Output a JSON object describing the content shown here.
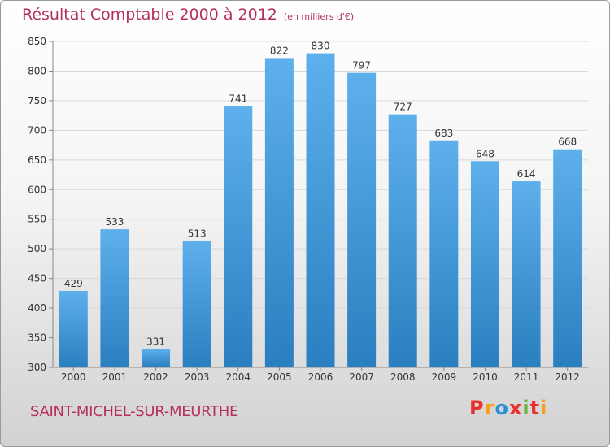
{
  "header": {
    "title": "Résultat Comptable 2000 à 2012",
    "unit": "(en milliers d'€)"
  },
  "footer": {
    "commune": "SAINT-MICHEL-SUR-MEURTHE",
    "logo": "Proxiti",
    "logo_colors": [
      "#e8312f",
      "#f7a019",
      "#2e8fd4",
      "#e8312f",
      "#6cb33f",
      "#e8312f",
      "#f7a019"
    ]
  },
  "colors": {
    "bar_light": "#5eb0ec",
    "bar_dark": "#2a7fc0",
    "title": "#b5305a"
  },
  "chart_data": {
    "type": "bar",
    "title": "Résultat Comptable 2000 à 2012",
    "ylabel": "",
    "xlabel": "",
    "categories": [
      "2000",
      "2001",
      "2002",
      "2003",
      "2004",
      "2005",
      "2006",
      "2007",
      "2008",
      "2009",
      "2010",
      "2011",
      "2012"
    ],
    "values": [
      429,
      533,
      331,
      513,
      741,
      822,
      830,
      797,
      727,
      683,
      648,
      614,
      668
    ],
    "ylim": [
      300,
      850
    ],
    "yticks": [
      300,
      350,
      400,
      450,
      500,
      550,
      600,
      650,
      700,
      750,
      800,
      850
    ],
    "grid": true
  }
}
